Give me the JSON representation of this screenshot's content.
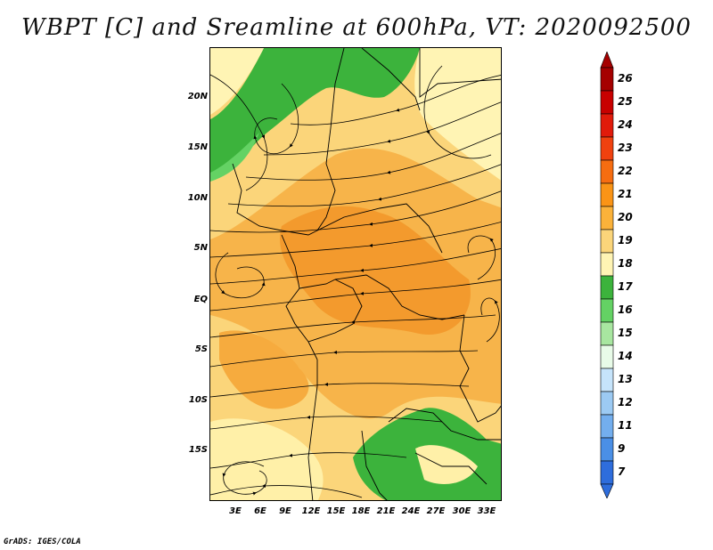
{
  "title": "WBPT [C] and Sreamline at 600hPa, VT: 2020092500",
  "credit": "GrADS: IGES/COLA",
  "lat_labels": [
    "20N",
    "15N",
    "10N",
    "5N",
    "EQ",
    "5S",
    "10S",
    "15S"
  ],
  "lon_labels": [
    "3E",
    "6E",
    "9E",
    "12E",
    "15E",
    "18E",
    "21E",
    "24E",
    "27E",
    "30E",
    "33E"
  ],
  "colorbar": {
    "labels": [
      "26",
      "25",
      "24",
      "23",
      "22",
      "21",
      "20",
      "19",
      "18",
      "17",
      "16",
      "15",
      "14",
      "13",
      "12",
      "11",
      "9",
      "7"
    ],
    "colors": [
      "#a50000",
      "#c80000",
      "#e11b0b",
      "#f0410f",
      "#f66d11",
      "#fa9416",
      "#fbb23a",
      "#fbd57a",
      "#fff4b4",
      "#3cb33c",
      "#64d264",
      "#a8e6a0",
      "#e8fbe8",
      "#c6e4fb",
      "#9ccaf3",
      "#73aeee",
      "#4a8fe6",
      "#2e6ddc"
    ]
  }
}
